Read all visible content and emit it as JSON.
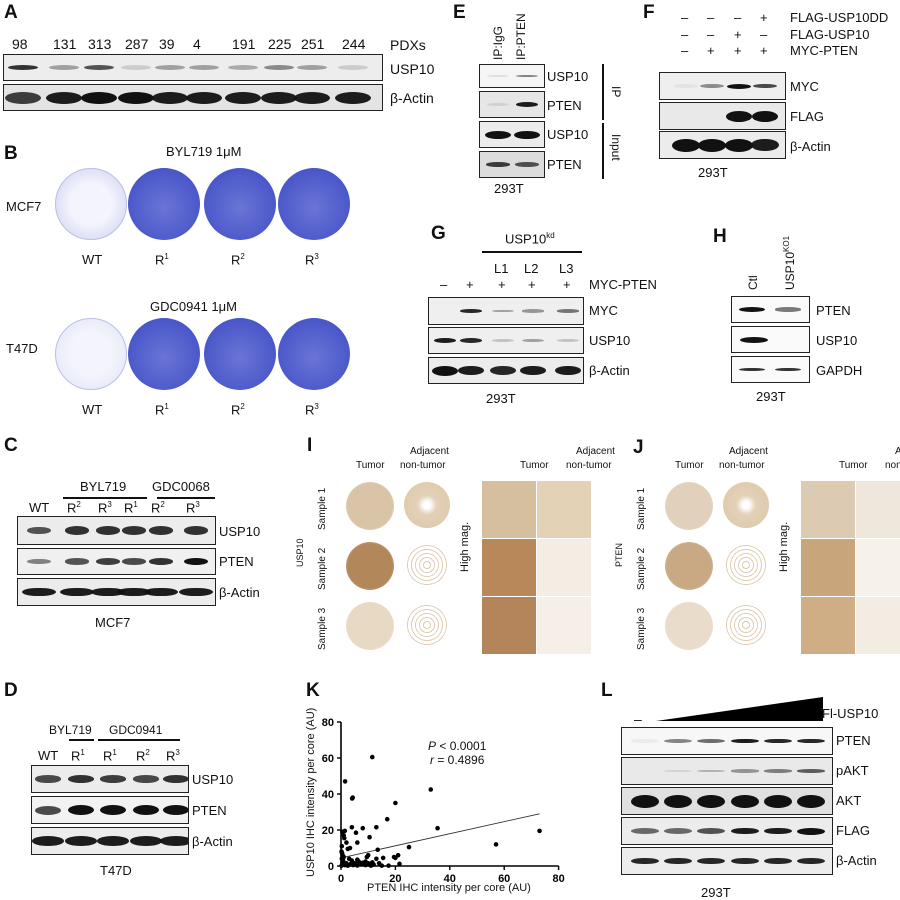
{
  "panels": {
    "A": {
      "label": "A",
      "lanes": [
        "98",
        "131",
        "313",
        "287",
        "39",
        "4",
        "191",
        "225",
        "251",
        "244"
      ],
      "lanes_title": "PDXs",
      "rows": [
        "USP10",
        "β-Actin"
      ],
      "usp10_intensity": [
        0.85,
        0.35,
        0.7,
        0.15,
        0.35,
        0.35,
        0.3,
        0.45,
        0.35,
        0.15
      ],
      "actin_intensity": [
        0.8,
        0.95,
        1,
        1,
        0.95,
        0.95,
        0.95,
        0.95,
        0.95,
        0.95
      ]
    },
    "B": {
      "label": "B",
      "top": {
        "title": "BYL719 1μM",
        "cell_line": "MCF7"
      },
      "bottom": {
        "title": "GDC0941 1μM",
        "cell_line": "T47D"
      },
      "dish_labels": [
        "WT",
        "R",
        "R",
        "R"
      ],
      "dish_sups": [
        "",
        "1",
        "2",
        "3"
      ],
      "dish_color": "#4a57c9"
    },
    "C": {
      "label": "C",
      "groups": [
        "BYL719",
        "GDC0068"
      ],
      "lanes": [
        "WT",
        "R",
        "R",
        "R",
        "R",
        "R"
      ],
      "lane_sups": [
        "",
        "2",
        "3",
        "1",
        "2",
        "3"
      ],
      "rows": [
        "USP10",
        "PTEN",
        "β-Actin"
      ],
      "cell_line": "MCF7"
    },
    "D": {
      "label": "D",
      "groups": [
        "BYL719",
        "GDC0941"
      ],
      "lanes": [
        "WT",
        "R",
        "R",
        "R",
        "R"
      ],
      "lane_sups": [
        "",
        "1",
        "1",
        "2",
        "3"
      ],
      "rows": [
        "USP10",
        "PTEN",
        "β-Actin"
      ],
      "cell_line": "T47D"
    },
    "E": {
      "label": "E",
      "lanes": [
        "IP:IgG",
        "IP:PTEN"
      ],
      "rows": [
        "USP10",
        "PTEN",
        "USP10",
        "PTEN"
      ],
      "brackets": [
        "IP",
        "Input"
      ],
      "cell_line": "293T"
    },
    "F": {
      "label": "F",
      "conditions": [
        {
          "name": "FLAG-USP10DD",
          "signs": [
            "–",
            "–",
            "–",
            "+"
          ]
        },
        {
          "name": "FLAG-USP10",
          "signs": [
            "–",
            "–",
            "+",
            "–"
          ]
        },
        {
          "name": "MYC-PTEN",
          "signs": [
            "–",
            "+",
            "+",
            "+"
          ]
        }
      ],
      "rows": [
        "MYC",
        "FLAG",
        "β-Actin"
      ],
      "cell_line": "293T"
    },
    "G": {
      "label": "G",
      "group": "USP10",
      "group_sup": "kd",
      "sublanes": [
        "L1",
        "L2",
        "L3"
      ],
      "condition": {
        "name": "MYC-PTEN",
        "signs": [
          "–",
          "+",
          "+",
          "+",
          "+"
        ]
      },
      "rows": [
        "MYC",
        "USP10",
        "β-Actin"
      ],
      "cell_line": "293T"
    },
    "H": {
      "label": "H",
      "lanes": [
        "Ctl",
        "USP10"
      ],
      "lane_sup": "KO1",
      "rows": [
        "PTEN",
        "USP10",
        "GAPDH"
      ],
      "cell_line": "293T"
    },
    "I": {
      "label": "I",
      "marker": "USP10",
      "col_headers": [
        "Tumor",
        "Adjacent non-tumor"
      ],
      "col_headers_line1": [
        "",
        "Adjacent"
      ],
      "col_headers_line2": [
        "Tumor",
        "non-tumor"
      ],
      "samples": [
        "Sample 1",
        "Sample 2",
        "Sample 3"
      ],
      "high_mag": "High mag."
    },
    "J": {
      "label": "J",
      "marker": "PTEN",
      "col_headers_line1": [
        "",
        "Adjacent"
      ],
      "col_headers_line2": [
        "Tumor",
        "non-tumor"
      ],
      "samples": [
        "Sample 1",
        "Sample 2",
        "Sample 3"
      ],
      "high_mag": "High mag."
    },
    "K": {
      "label": "K",
      "stats_p_label": "P",
      "stats_p_value": " < 0.0001",
      "stats_r_label": "r",
      "stats_r_value": " = 0.4896",
      "x_ticks": [
        "0",
        "20",
        "40",
        "60",
        "80"
      ],
      "y_ticks": [
        "0",
        "20",
        "40",
        "60",
        "80"
      ],
      "xlabel": "PTEN IHC intensity per core (AU)",
      "ylabel": "USP10 IHC intensity per core (AU)"
    },
    "L": {
      "label": "L",
      "condition": "Fl-USP10",
      "minus": "–",
      "rows": [
        "PTEN",
        "pAKT",
        "AKT",
        "FLAG",
        "β-Actin"
      ],
      "cell_line": "293T"
    }
  },
  "chart_data": {
    "type": "scatter",
    "title": "",
    "xlabel": "PTEN IHC intensity per core (AU)",
    "ylabel": "USP10 IHC intensity per core (AU)",
    "xlim": [
      0,
      80
    ],
    "ylim": [
      0,
      80
    ],
    "x_ticks": [
      0,
      20,
      40,
      60,
      80
    ],
    "y_ticks": [
      0,
      20,
      40,
      60,
      80
    ],
    "grid": false,
    "annotations": [
      "P < 0.0001",
      "r = 0.4896"
    ],
    "regression_line": {
      "x": [
        0,
        73
      ],
      "y": [
        4.5,
        29
      ]
    },
    "points": [
      [
        11.5,
        60.5
      ],
      [
        1.5,
        47
      ],
      [
        4.3,
        38
      ],
      [
        4.1,
        37.5
      ],
      [
        33,
        42.5
      ],
      [
        20,
        35
      ],
      [
        17,
        26
      ],
      [
        0.5,
        19
      ],
      [
        1.4,
        19.5
      ],
      [
        1,
        17
      ],
      [
        1.2,
        15.5
      ],
      [
        4,
        21.5
      ],
      [
        8,
        21
      ],
      [
        13,
        21.5
      ],
      [
        35.5,
        21
      ],
      [
        5.5,
        18.5
      ],
      [
        10.5,
        16
      ],
      [
        73,
        19.5
      ],
      [
        2,
        13
      ],
      [
        6,
        13
      ],
      [
        57,
        12
      ],
      [
        25,
        10.5
      ],
      [
        0.3,
        11
      ],
      [
        2.5,
        9.5
      ],
      [
        3.3,
        10
      ],
      [
        13.5,
        9
      ],
      [
        0.2,
        8
      ],
      [
        0.4,
        7
      ],
      [
        0.6,
        6
      ],
      [
        1,
        5
      ],
      [
        0.3,
        4
      ],
      [
        3,
        4
      ],
      [
        4,
        3
      ],
      [
        6,
        3.5
      ],
      [
        9.5,
        5
      ],
      [
        10,
        6
      ],
      [
        13,
        4
      ],
      [
        15.5,
        4.5
      ],
      [
        19.5,
        5
      ],
      [
        21,
        6
      ],
      [
        20,
        4.5
      ],
      [
        0.5,
        2
      ],
      [
        1,
        1
      ],
      [
        1.5,
        0.5
      ],
      [
        2,
        1.5
      ],
      [
        2.5,
        0.2
      ],
      [
        3.5,
        1
      ],
      [
        4.5,
        0.5
      ],
      [
        5,
        1.5
      ],
      [
        6,
        0.3
      ],
      [
        7.5,
        1
      ],
      [
        8,
        1.8
      ],
      [
        9,
        0.5
      ],
      [
        10,
        1.5
      ],
      [
        11,
        0.2
      ],
      [
        12,
        0.8
      ],
      [
        14,
        1.5
      ],
      [
        15,
        0.2
      ],
      [
        17.5,
        0.2
      ],
      [
        21.5,
        1.2
      ],
      [
        0.2,
        0.2
      ],
      [
        0.8,
        3
      ],
      [
        6.5,
        2.5
      ],
      [
        9,
        2.5
      ],
      [
        11.5,
        2
      ]
    ]
  }
}
